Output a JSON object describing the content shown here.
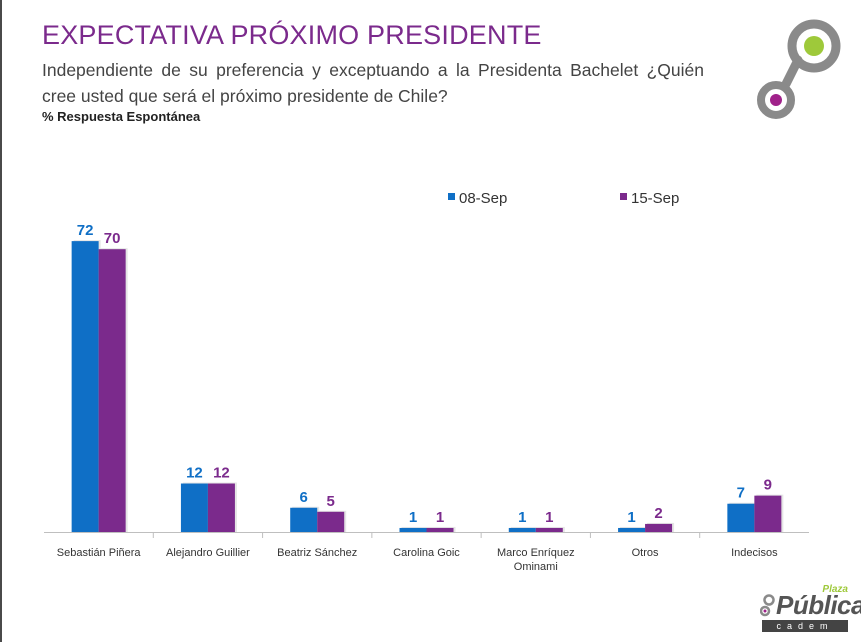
{
  "header": {
    "title": "EXPECTATIVA PRÓXIMO PRESIDENTE",
    "subtitle": "Independiente de su preferencia y exceptuando a la Presidenta Bachelet ¿Quién cree usted que será el próximo presidente de Chile?",
    "note": "% Respuesta Espontánea"
  },
  "logo": {
    "plaza": "Plaza",
    "publica": "Pública",
    "cadem": "cadem",
    "ring_color": "#8a8a8a",
    "green": "#9ec93a",
    "purple": "#a0218a"
  },
  "colors": {
    "series1": "#0f6fc6",
    "series2": "#7b2a8c"
  },
  "chart_data": {
    "type": "bar",
    "categories": [
      [
        "Sebastián Piñera"
      ],
      [
        "Alejandro Guillier"
      ],
      [
        "Beatriz Sánchez"
      ],
      [
        "Carolina Goic"
      ],
      [
        "Marco Enríquez",
        "Ominami"
      ],
      [
        "Otros"
      ],
      [
        "Indecisos"
      ]
    ],
    "series": [
      {
        "name": "08-Sep",
        "values": [
          72,
          12,
          6,
          1,
          1,
          1,
          7
        ]
      },
      {
        "name": "15-Sep",
        "values": [
          70,
          12,
          5,
          1,
          1,
          2,
          9
        ]
      }
    ],
    "ylim": [
      0,
      80
    ],
    "legend": "top-right",
    "grid": false,
    "data_labels": true
  }
}
